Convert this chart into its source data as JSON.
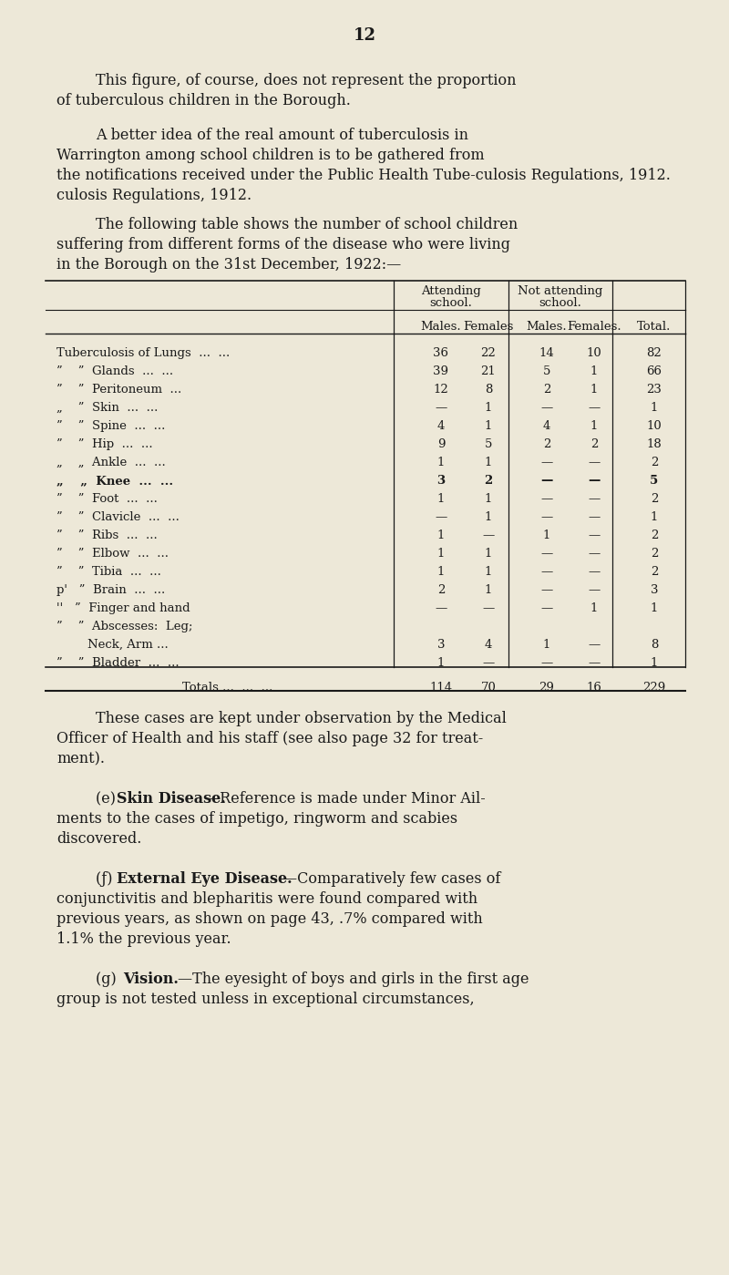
{
  "bg_color": "#ede8d8",
  "text_color": "#1a1a1a",
  "page_number": "12",
  "rows": [
    [
      "Tuberculosis of Lungs  ...  ...",
      "36",
      "22",
      "14",
      "10",
      "82",
      false
    ],
    [
      "”    ”  Glands  ...  ...",
      "39",
      "21",
      "5",
      "1",
      "66",
      false
    ],
    [
      "”    ”  Peritoneum  ...",
      "12",
      "8",
      "2",
      "1",
      "23",
      false
    ],
    [
      "„    ”  Skin  ...  ...",
      "—",
      "1",
      "—",
      "—",
      "1",
      false
    ],
    [
      "”    ”  Spine  ...  ...",
      "4",
      "1",
      "4",
      "1",
      "10",
      false
    ],
    [
      "”    ”  Hip  ...  ...",
      "9",
      "5",
      "2",
      "2",
      "18",
      false
    ],
    [
      "„    „  Ankle  ...  ...",
      "1",
      "1",
      "—",
      "—",
      "2",
      false
    ],
    [
      "„    „  Knee  ...  ...",
      "3",
      "2",
      "—",
      "—",
      "5",
      true
    ],
    [
      "”    ”  Foot  ...  ...",
      "1",
      "1",
      "—",
      "—",
      "2",
      false
    ],
    [
      "”    ”  Clavicle  ...  ...",
      "—",
      "1",
      "—",
      "—",
      "1",
      false
    ],
    [
      "”    ”  Ribs  ...  ...",
      "1",
      "—",
      "1",
      "—",
      "2",
      false
    ],
    [
      "”    ”  Elbow  ...  ...",
      "1",
      "1",
      "—",
      "—",
      "2",
      false
    ],
    [
      "”    ”  Tibia  ...  ...",
      "1",
      "1",
      "—",
      "—",
      "2",
      false
    ],
    [
      "р'   ”  Brain  ...  ...",
      "2",
      "1",
      "—",
      "—",
      "3",
      false
    ],
    [
      "''   ”  Finger and hand",
      "—",
      "—",
      "—",
      "1",
      "1",
      false
    ],
    [
      "”    ”  Abscesses:  Leg;",
      "",
      "",
      "",
      "",
      "",
      false
    ],
    [
      "        Neck, Arm ...",
      "3",
      "4",
      "1",
      "—",
      "8",
      false
    ],
    [
      "”    ”  Bladder  ...  ...",
      "1",
      "—",
      "—",
      "—",
      "1",
      false
    ]
  ]
}
